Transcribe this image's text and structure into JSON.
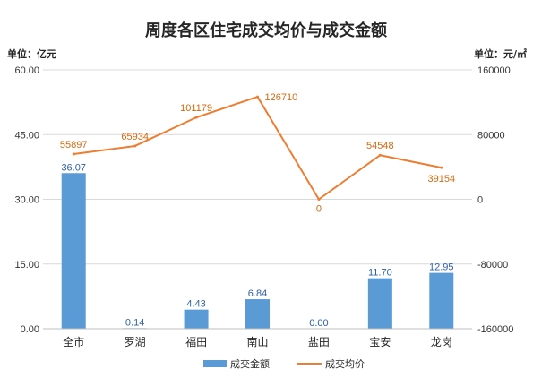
{
  "chart_data": {
    "type": "bar",
    "title": "周度各区住宅成交均价与成交金额",
    "left_unit": "单位：亿元",
    "right_unit": "单位：元/㎡",
    "categories": [
      "全市",
      "罗湖",
      "福田",
      "南山",
      "盐田",
      "宝安",
      "龙岗"
    ],
    "series": [
      {
        "name": "成交金额",
        "type": "bar",
        "axis": "left",
        "values": [
          36.07,
          0.14,
          4.43,
          6.84,
          0.0,
          11.7,
          12.95
        ],
        "labels": [
          "36.07",
          "0.14",
          "4.43",
          "6.84",
          "0.00",
          "11.70",
          "12.95"
        ]
      },
      {
        "name": "成交均价",
        "type": "line",
        "axis": "right",
        "values": [
          55897,
          65934,
          101179,
          126710,
          0,
          54548,
          39154
        ],
        "labels": [
          "55897",
          "65934",
          "101179",
          "126710",
          "0",
          "54548",
          "39154"
        ]
      }
    ],
    "y_left": {
      "min": 0,
      "max": 60,
      "ticks": [
        "0.00",
        "15.00",
        "30.00",
        "45.00",
        "60.00"
      ]
    },
    "y_right": {
      "min": -160000,
      "max": 160000,
      "ticks": [
        "-160000",
        "-80000",
        "0",
        "80000",
        "160000"
      ]
    },
    "grid": true,
    "legend_position": "bottom",
    "colors": {
      "bar": "#5b9bd5",
      "line": "#ed7d31",
      "bar_label": "#2e5fa8",
      "line_label": "#d2690f",
      "grid": "#d9d9d9"
    }
  }
}
